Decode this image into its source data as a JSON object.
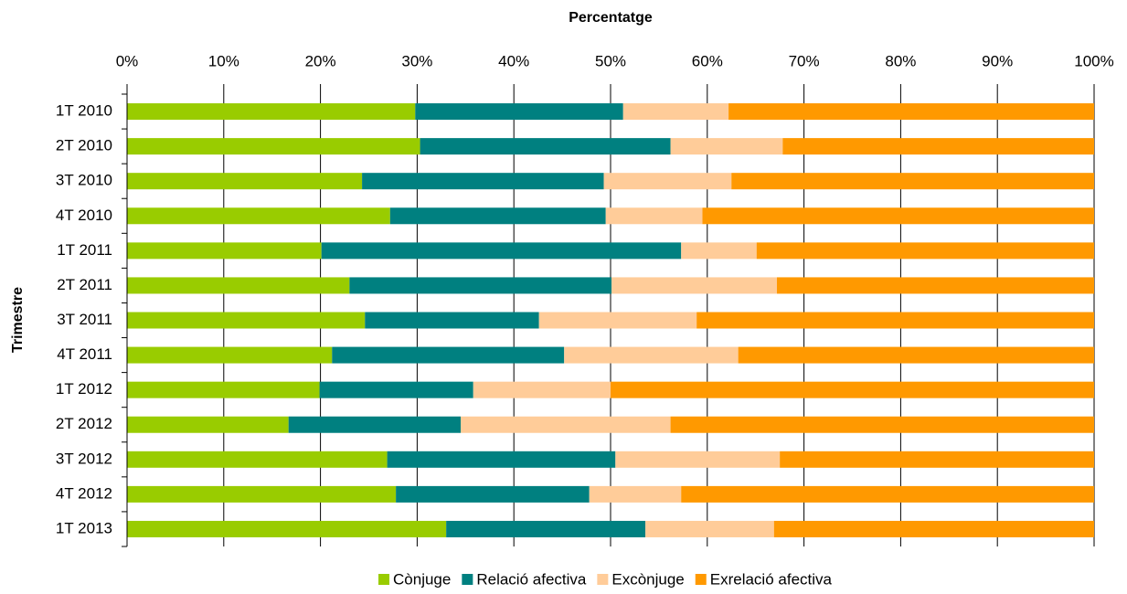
{
  "chart_data": {
    "type": "stacked_bar_horizontal",
    "x_label": "Percentatge",
    "y_label": "Trimestre",
    "categories": [
      "1T 2010",
      "2T 2010",
      "3T 2010",
      "4T 2010",
      "1T 2011",
      "2T 2011",
      "3T 2011",
      "4T 2011",
      "1T 2012",
      "2T 2012",
      "3T 2012",
      "4T 2012",
      "1T 2013"
    ],
    "series": [
      {
        "name": "Cònjuge",
        "color": "#99cc00",
        "values": [
          29.8,
          30.3,
          24.3,
          27.2,
          20.1,
          23.0,
          24.6,
          21.2,
          19.9,
          16.7,
          26.9,
          27.8,
          33.0
        ]
      },
      {
        "name": "Relació afectiva",
        "color": "#008080",
        "values": [
          21.5,
          25.9,
          25.0,
          22.3,
          37.2,
          27.1,
          18.0,
          24.0,
          15.9,
          17.8,
          23.6,
          20.0,
          20.6
        ]
      },
      {
        "name": "Excònjuge",
        "color": "#ffcc99",
        "values": [
          10.9,
          11.6,
          13.2,
          10.0,
          7.8,
          17.1,
          16.3,
          18.0,
          14.2,
          21.7,
          17.0,
          9.5,
          13.3
        ]
      },
      {
        "name": "Exrelació afectiva",
        "color": "#ff9900",
        "values": [
          37.8,
          32.2,
          37.5,
          40.5,
          34.9,
          32.8,
          41.1,
          36.8,
          50.0,
          43.8,
          32.5,
          42.7,
          33.1
        ]
      }
    ],
    "xlim": [
      0,
      100
    ],
    "xticks": [
      {
        "value": 0,
        "label": "0%"
      },
      {
        "value": 10,
        "label": "10%"
      },
      {
        "value": 20,
        "label": "20%"
      },
      {
        "value": 30,
        "label": "30%"
      },
      {
        "value": 40,
        "label": "40%"
      },
      {
        "value": 50,
        "label": "50%"
      },
      {
        "value": 60,
        "label": "60%"
      },
      {
        "value": 70,
        "label": "70%"
      },
      {
        "value": 80,
        "label": "80%"
      },
      {
        "value": 90,
        "label": "90%"
      },
      {
        "value": 100,
        "label": "100%"
      }
    ],
    "grid": true,
    "legend": "bottom"
  }
}
